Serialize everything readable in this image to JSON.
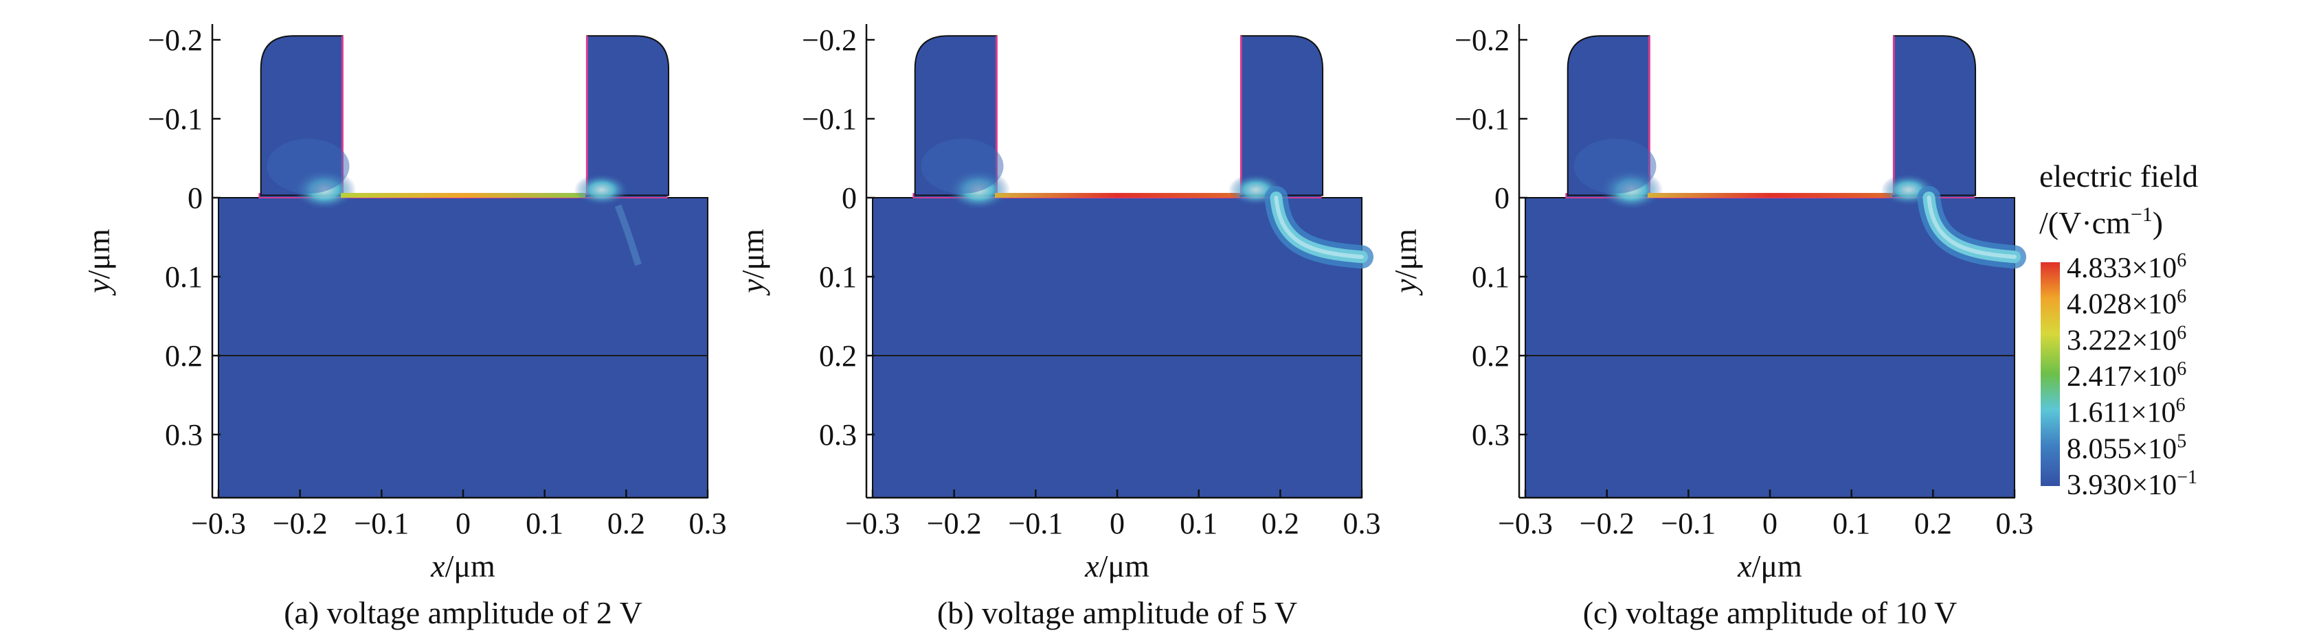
{
  "colors": {
    "background_field": "#3451a4",
    "oxide_outline": "#d63b8f",
    "outline": "#111111",
    "colorbar": [
      "#3451a4",
      "#5bc6d8",
      "#6cc04a",
      "#d6d83a",
      "#f0a52a",
      "#e0302a"
    ]
  },
  "chart_data": [
    {
      "type": "heatmap",
      "caption": "(a) voltage amplitude of 2 V",
      "xlabel_var": "x",
      "xlabel_unit": "/μm",
      "ylabel_var": "y",
      "ylabel_unit": "/μm",
      "xlim": [
        -0.3,
        0.3
      ],
      "ylim": [
        -0.22,
        0.38
      ],
      "y_inverted": true,
      "xticks": [
        "−0.3",
        "−0.2",
        "−0.1",
        "0",
        "0.1",
        "0.2",
        "0.3"
      ],
      "yticks": [
        "−0.2",
        "−0.1",
        "0",
        "0.1",
        "0.2",
        "0.3"
      ],
      "xtick_values": [
        -0.3,
        -0.2,
        -0.1,
        0,
        0.1,
        0.2,
        0.3
      ],
      "ytick_values": [
        -0.2,
        -0.1,
        0,
        0.1,
        0.2,
        0.3
      ],
      "features": {
        "channel_field": "weak",
        "drain_hotspot": false
      }
    },
    {
      "type": "heatmap",
      "caption": "(b) voltage amplitude of 5 V",
      "xlabel_var": "x",
      "xlabel_unit": "/μm",
      "ylabel_var": "y",
      "ylabel_unit": "/μm",
      "xlim": [
        -0.3,
        0.3
      ],
      "ylim": [
        -0.22,
        0.38
      ],
      "y_inverted": true,
      "xticks": [
        "−0.3",
        "−0.2",
        "−0.1",
        "0",
        "0.1",
        "0.2",
        "0.3"
      ],
      "yticks": [
        "−0.2",
        "−0.1",
        "0",
        "0.1",
        "0.2",
        "0.3"
      ],
      "xtick_values": [
        -0.3,
        -0.2,
        -0.1,
        0,
        0.1,
        0.2,
        0.3
      ],
      "ytick_values": [
        -0.2,
        -0.1,
        0,
        0.1,
        0.2,
        0.3
      ],
      "features": {
        "channel_field": "strong",
        "drain_hotspot": true
      }
    },
    {
      "type": "heatmap",
      "caption": "(c) voltage amplitude of 10 V",
      "xlabel_var": "x",
      "xlabel_unit": "/μm",
      "ylabel_var": "y",
      "ylabel_unit": "/μm",
      "xlim": [
        -0.3,
        0.3
      ],
      "ylim": [
        -0.22,
        0.38
      ],
      "y_inverted": true,
      "xticks": [
        "−0.3",
        "−0.2",
        "−0.1",
        "0",
        "0.1",
        "0.2",
        "0.3"
      ],
      "yticks": [
        "−0.2",
        "−0.1",
        "0",
        "0.1",
        "0.2",
        "0.3"
      ],
      "xtick_values": [
        -0.3,
        -0.2,
        -0.1,
        0,
        0.1,
        0.2,
        0.3
      ],
      "ytick_values": [
        -0.2,
        -0.1,
        0,
        0.1,
        0.2,
        0.3
      ],
      "features": {
        "channel_field": "moderate",
        "drain_hotspot": true
      }
    }
  ],
  "colorbar": {
    "title_line1": "electric field",
    "title_line2": "/(V·cm",
    "title_sup": "−1",
    "title_end": ")",
    "labels": [
      {
        "mant": "4.833×10",
        "exp": "6"
      },
      {
        "mant": "4.028×10",
        "exp": "6"
      },
      {
        "mant": "3.222×10",
        "exp": "6"
      },
      {
        "mant": "2.417×10",
        "exp": "6"
      },
      {
        "mant": "1.611×10",
        "exp": "6"
      },
      {
        "mant": "8.055×10",
        "exp": "5"
      },
      {
        "mant": "3.930×10",
        "exp": "−1"
      }
    ]
  }
}
